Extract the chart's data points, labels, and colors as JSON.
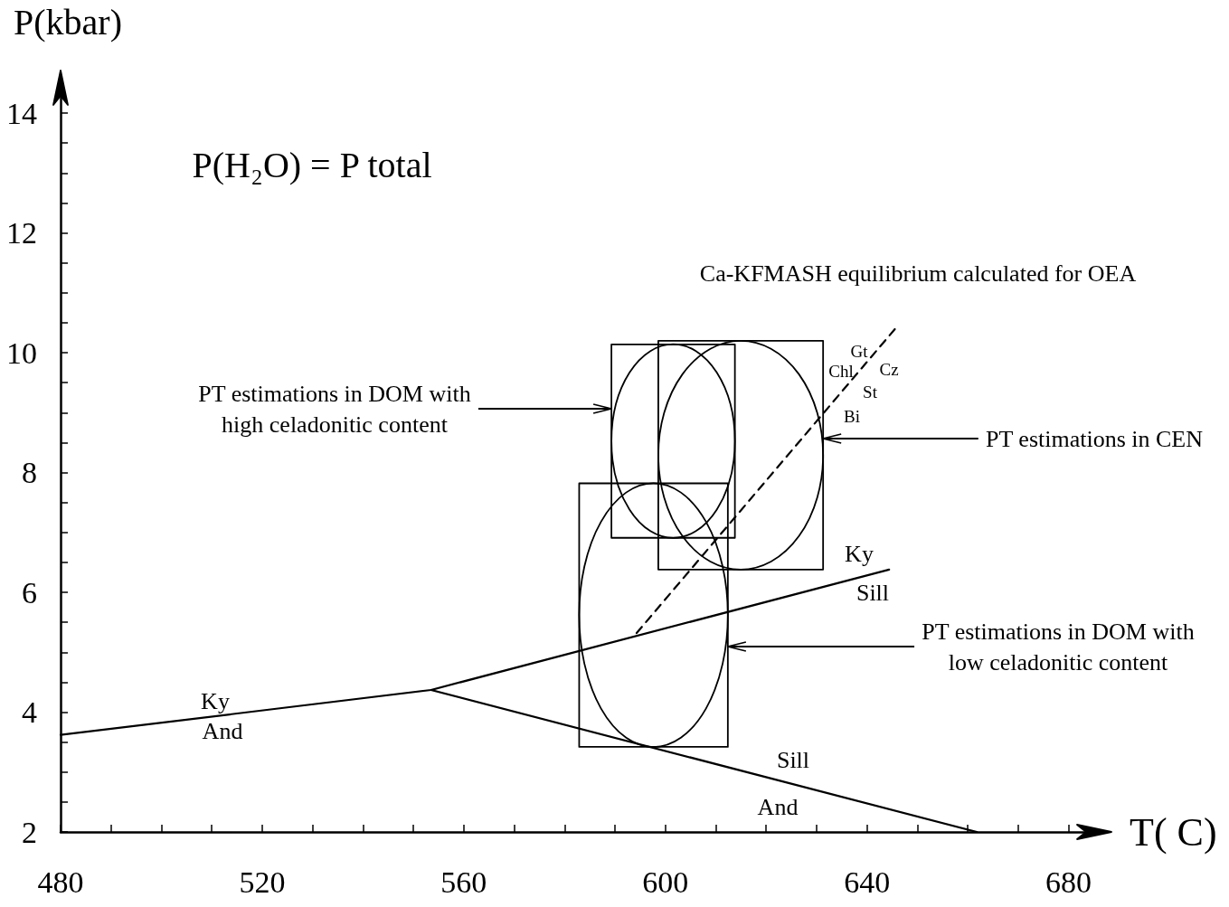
{
  "chart_data": {
    "type": "line",
    "xlabel": "T( C)",
    "ylabel": "P(kbar)",
    "xlim": [
      480,
      686
    ],
    "ylim": [
      2,
      14.5
    ],
    "xticks": [
      480,
      {
        "value": 490,
        "label": null
      },
      {
        "value": 500,
        "label": null
      },
      {
        "value": 510,
        "label": null
      },
      520,
      {
        "value": 530,
        "label": null
      },
      {
        "value": 540,
        "label": null
      },
      {
        "value": 550,
        "label": null
      },
      560,
      {
        "value": 570,
        "label": null
      },
      {
        "value": 580,
        "label": null
      },
      {
        "value": 590,
        "label": null
      },
      600,
      {
        "value": 610,
        "label": null
      },
      {
        "value": 620,
        "label": null
      },
      {
        "value": 630,
        "label": null
      },
      640,
      {
        "value": 650,
        "label": null
      },
      {
        "value": 660,
        "label": null
      },
      {
        "value": 670,
        "label": null
      },
      680
    ],
    "yticks": [
      2,
      {
        "value": 2.5,
        "label": null
      },
      {
        "value": 3,
        "label": null
      },
      {
        "value": 3.5,
        "label": null
      },
      4,
      {
        "value": 4.5,
        "label": null
      },
      {
        "value": 5,
        "label": null
      },
      {
        "value": 5.5,
        "label": null
      },
      6,
      {
        "value": 6.5,
        "label": null
      },
      {
        "value": 7,
        "label": null
      },
      {
        "value": 7.5,
        "label": null
      },
      8,
      {
        "value": 8.5,
        "label": null
      },
      {
        "value": 9,
        "label": null
      },
      {
        "value": 9.5,
        "label": null
      },
      10,
      {
        "value": 10.5,
        "label": null
      },
      {
        "value": 11,
        "label": null
      },
      {
        "value": 11.5,
        "label": null
      },
      12,
      {
        "value": 12.5,
        "label": null
      },
      {
        "value": 13,
        "label": null
      },
      {
        "value": 13.5,
        "label": null
      },
      14
    ],
    "grid": false,
    "marker": "none",
    "line_style": "solid",
    "series": [
      {
        "color": "#000000",
        "x": [
          480,
          553.5,
          644.4
        ],
        "values": [
          3.62,
          4.37,
          6.38
        ]
      },
      {
        "color": "#000000",
        "x": [
          553.5,
          661.8
        ],
        "values": [
          4.37,
          2.0
        ]
      },
      {
        "color": "#000000",
        "line_style": "dashed",
        "x": [
          594.3,
          646.2
        ],
        "values": [
          5.32,
          10.46
        ]
      }
    ],
    "annotations": [
      "P(H₂O) = P total",
      "Ca-KFMASH equilibrium calculated for OEA",
      "PT estimations in DOM with\nhigh celadonitic content",
      "PT estimations in CEN",
      "PT estimations in DOM with\nlow celadonitic content",
      "Ky",
      "And",
      "Ky",
      "Sill",
      "Sill",
      "And",
      "Gt",
      "Chl",
      "Cz",
      "St",
      "Bi"
    ]
  }
}
